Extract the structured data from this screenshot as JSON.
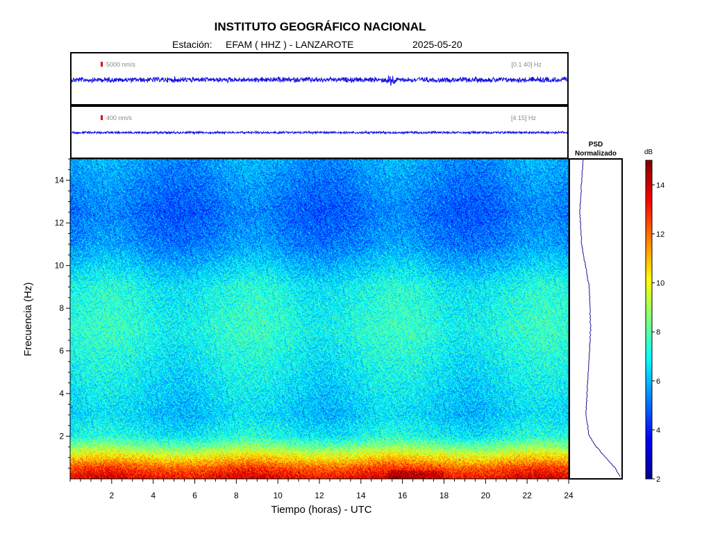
{
  "header": {
    "title": "INSTITUTO GEOGRÁFICO NACIONAL",
    "station_label": "Estación:",
    "station": "EFAM ( HHZ ) - LANZAROTE",
    "date": "2025-05-20"
  },
  "traces": [
    {
      "scale_label": "5000 nm/s",
      "band_label": "[0.1 40] Hz",
      "event_hour": 15.45
    },
    {
      "scale_label": "400 nm/s",
      "band_label": "[4 15] Hz"
    }
  ],
  "psd": {
    "title_line1": "PSD",
    "title_line2": "Normalizado"
  },
  "colorbar": {
    "unit": "dB",
    "ticks": [
      "2",
      "4",
      "6",
      "8",
      "10",
      "12",
      "14"
    ],
    "range": [
      2,
      15
    ],
    "colormap": "jet"
  },
  "chart_data": {
    "type": "heatmap",
    "xlabel": "Tiempo (horas) - UTC",
    "ylabel": "Frecuencia  (Hz)",
    "xlim": [
      0,
      24
    ],
    "ylim": [
      0,
      15
    ],
    "x_ticks": [
      "2",
      "4",
      "6",
      "8",
      "10",
      "12",
      "14",
      "16",
      "18",
      "20",
      "22",
      "24"
    ],
    "y_ticks": [
      "2",
      "4",
      "6",
      "8",
      "10",
      "12",
      "14"
    ],
    "value_unit": "dB",
    "approx_mean_db_by_frequency": [
      {
        "hz": 0.1,
        "db": 13.5
      },
      {
        "hz": 0.5,
        "db": 12.5
      },
      {
        "hz": 1.0,
        "db": 10.5
      },
      {
        "hz": 1.5,
        "db": 8.5
      },
      {
        "hz": 2.0,
        "db": 7.0
      },
      {
        "hz": 3.0,
        "db": 6.3
      },
      {
        "hz": 5.0,
        "db": 6.8
      },
      {
        "hz": 7.0,
        "db": 7.3
      },
      {
        "hz": 9.0,
        "db": 7.0
      },
      {
        "hz": 10.0,
        "db": 6.2
      },
      {
        "hz": 11.0,
        "db": 5.4
      },
      {
        "hz": 12.5,
        "db": 5.0
      },
      {
        "hz": 14.0,
        "db": 5.4
      },
      {
        "hz": 15.0,
        "db": 5.7
      }
    ]
  }
}
